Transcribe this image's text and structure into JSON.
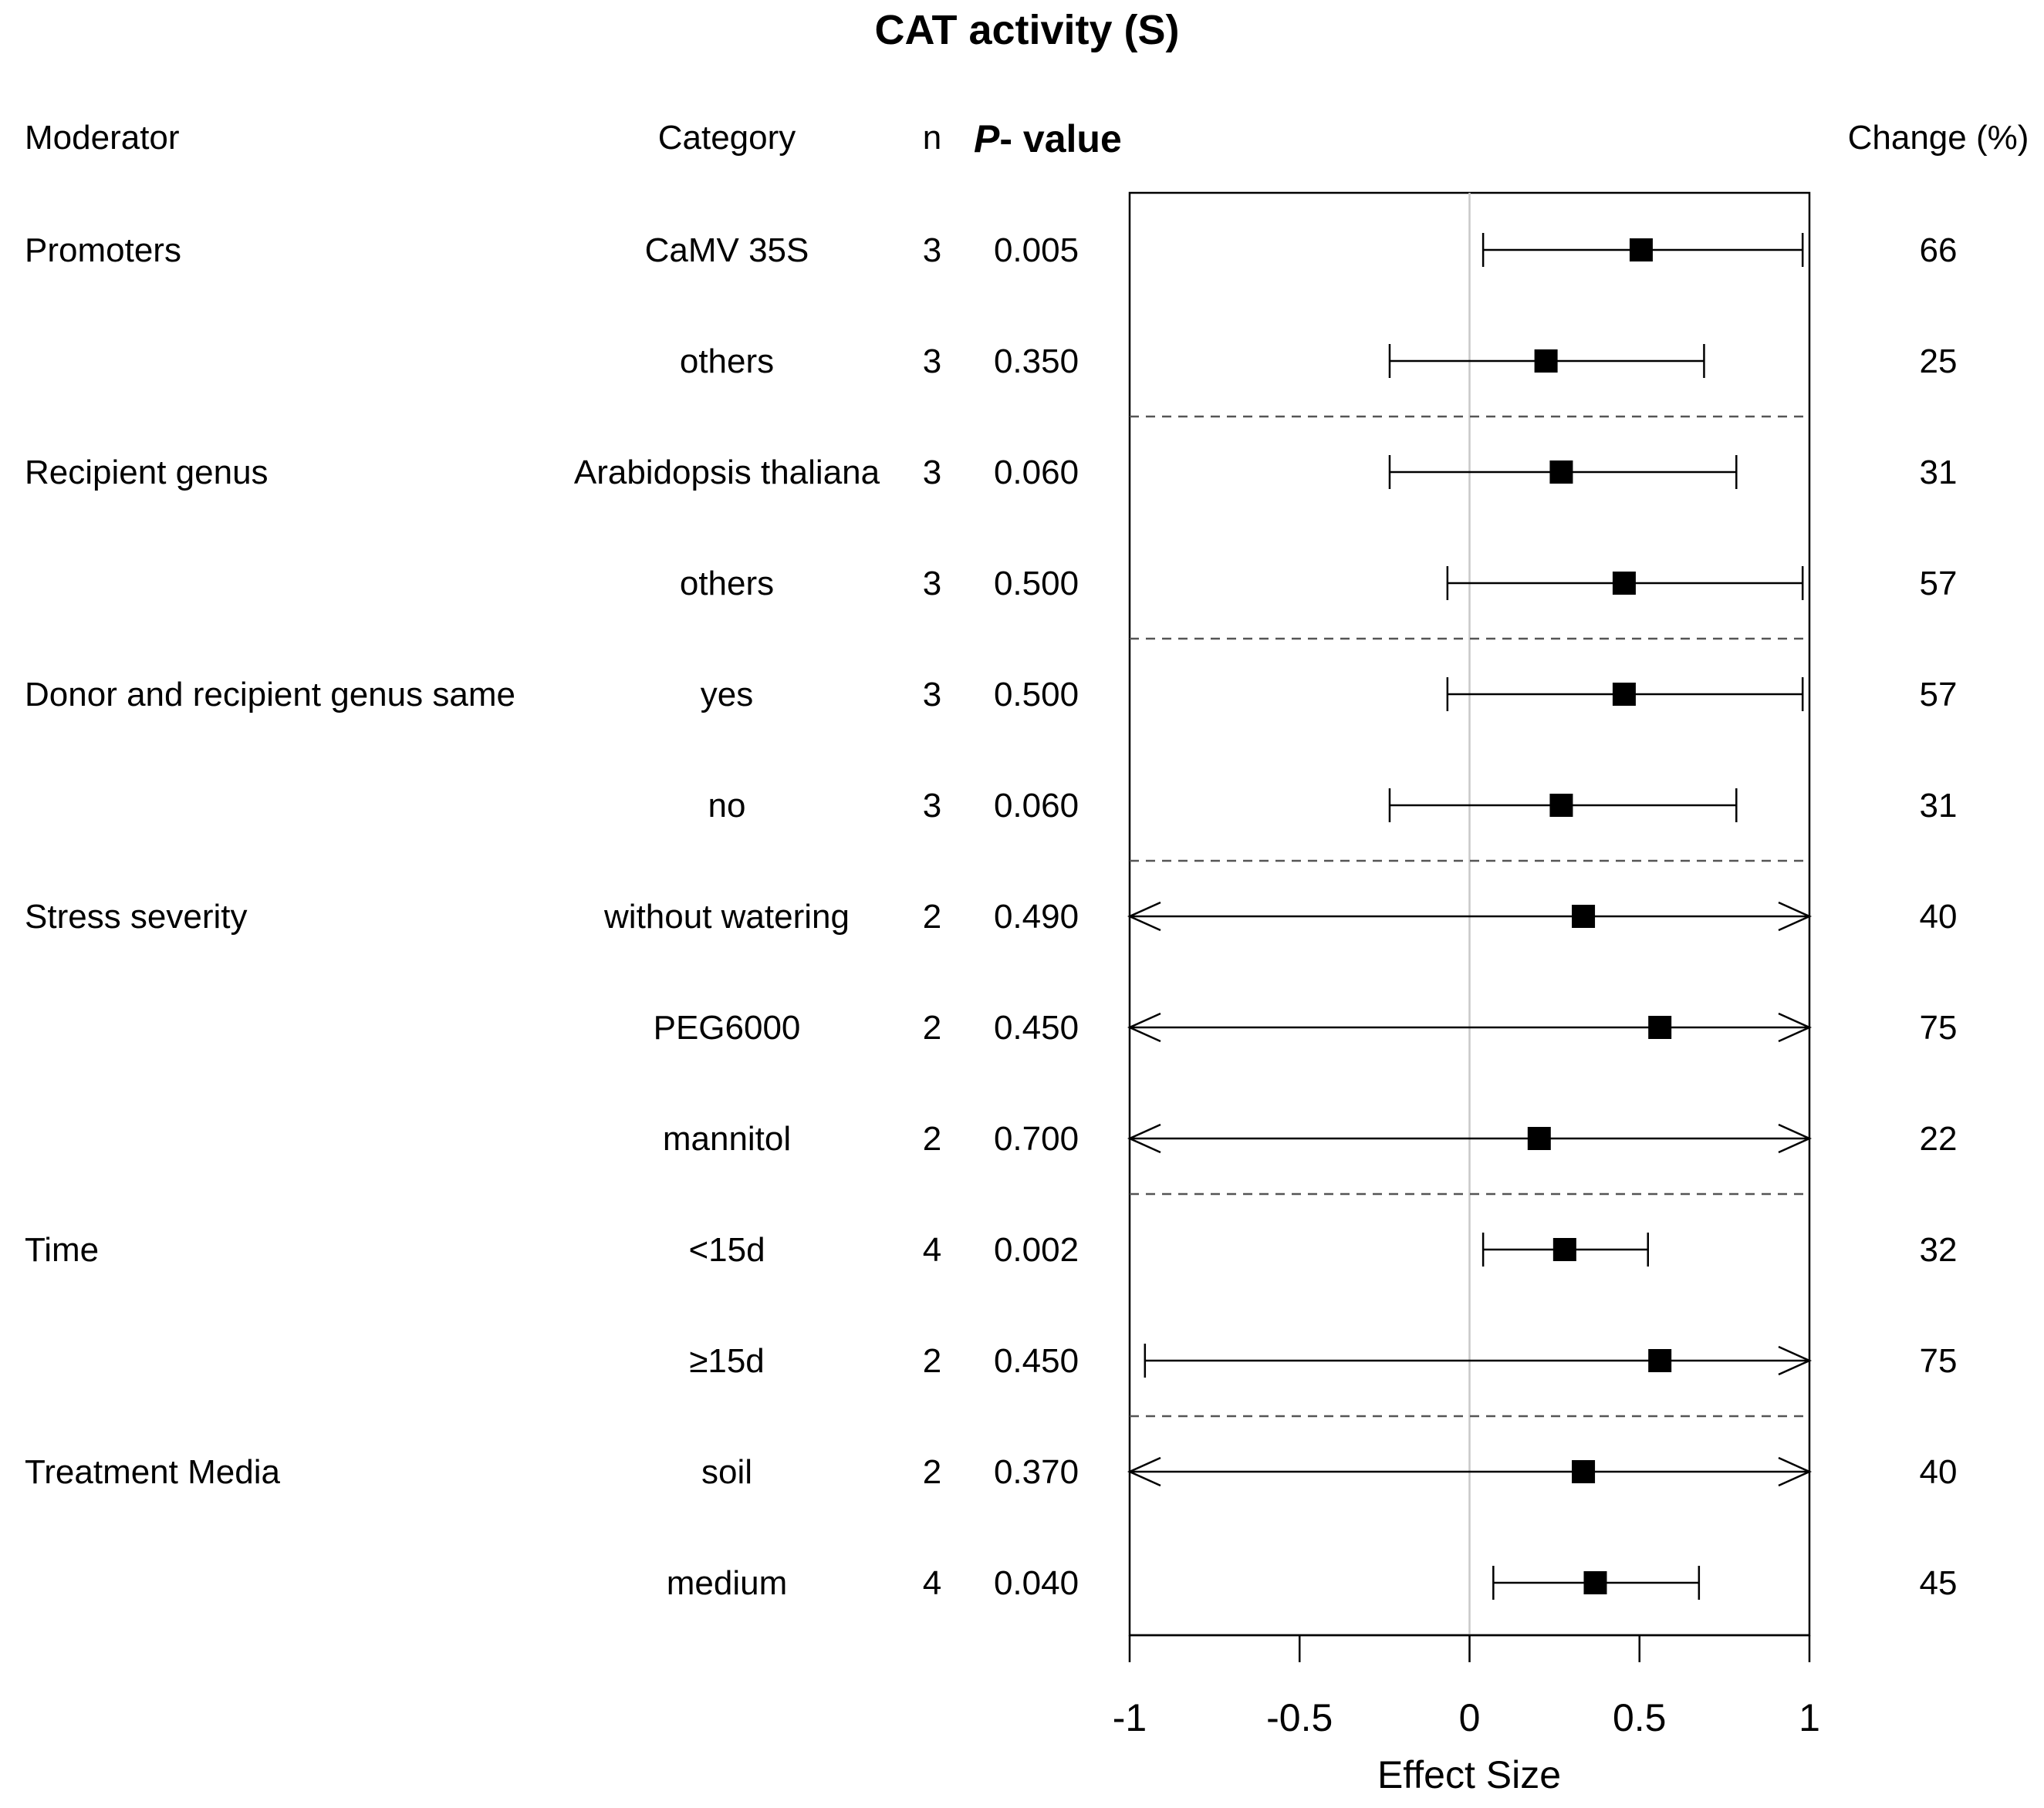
{
  "chart_data": {
    "type": "forest",
    "title": "CAT activity (S)",
    "xlabel": "Effect Size",
    "xlim": [
      -1,
      1
    ],
    "xticks": [
      -1,
      -0.5,
      0,
      0.5,
      1
    ],
    "xtick_labels": [
      "-1",
      "-0.5",
      "0",
      "0.5",
      "1"
    ],
    "columns": {
      "moderator": "Moderator",
      "category": "Category",
      "n": "n",
      "p_italic": "P",
      "p_rest": "- value",
      "change": "Change (%)"
    },
    "rows": [
      {
        "moderator": "Promoters",
        "category": "CaMV 35S",
        "n": "3",
        "p": "0.005",
        "es": 0.505,
        "lo": 0.04,
        "hi": 0.98,
        "lo_arrow": false,
        "hi_arrow": false,
        "change": "66"
      },
      {
        "moderator": "",
        "category": "others",
        "n": "3",
        "p": "0.350",
        "es": 0.225,
        "lo": -0.235,
        "hi": 0.69,
        "lo_arrow": false,
        "hi_arrow": false,
        "change": "25"
      },
      {
        "moderator": "Recipient genus",
        "category": "Arabidopsis thaliana",
        "n": "3",
        "p": "0.060",
        "es": 0.27,
        "lo": -0.235,
        "hi": 0.785,
        "lo_arrow": false,
        "hi_arrow": false,
        "change": "31"
      },
      {
        "moderator": "",
        "category": "others",
        "n": "3",
        "p": "0.500",
        "es": 0.455,
        "lo": -0.065,
        "hi": 0.98,
        "lo_arrow": false,
        "hi_arrow": false,
        "change": "57"
      },
      {
        "moderator": "Donor and recipient genus same",
        "category": "yes",
        "n": "3",
        "p": "0.500",
        "es": 0.455,
        "lo": -0.065,
        "hi": 0.98,
        "lo_arrow": false,
        "hi_arrow": false,
        "change": "57"
      },
      {
        "moderator": "",
        "category": "no",
        "n": "3",
        "p": "0.060",
        "es": 0.27,
        "lo": -0.235,
        "hi": 0.785,
        "lo_arrow": false,
        "hi_arrow": false,
        "change": "31"
      },
      {
        "moderator": "Stress severity",
        "category": "without watering",
        "n": "2",
        "p": "0.490",
        "es": 0.335,
        "lo": -1,
        "hi": 1,
        "lo_arrow": true,
        "hi_arrow": true,
        "change": "40"
      },
      {
        "moderator": "",
        "category": "PEG6000",
        "n": "2",
        "p": "0.450",
        "es": 0.56,
        "lo": -1,
        "hi": 1,
        "lo_arrow": true,
        "hi_arrow": true,
        "change": "75"
      },
      {
        "moderator": "",
        "category": "mannitol",
        "n": "2",
        "p": "0.700",
        "es": 0.205,
        "lo": -1,
        "hi": 1,
        "lo_arrow": true,
        "hi_arrow": true,
        "change": "22"
      },
      {
        "moderator": "Time",
        "category": "<15d",
        "n": "4",
        "p": "0.002",
        "es": 0.28,
        "lo": 0.04,
        "hi": 0.525,
        "lo_arrow": false,
        "hi_arrow": false,
        "change": "32"
      },
      {
        "moderator": "",
        "category": "≥15d",
        "n": "2",
        "p": "0.450",
        "es": 0.56,
        "lo": -0.955,
        "hi": 1,
        "lo_arrow": false,
        "hi_arrow": true,
        "change": "75"
      },
      {
        "moderator": "Treatment Media",
        "category": "soil",
        "n": "2",
        "p": "0.370",
        "es": 0.335,
        "lo": -1,
        "hi": 1,
        "lo_arrow": true,
        "hi_arrow": true,
        "change": "40"
      },
      {
        "moderator": "",
        "category": "medium",
        "n": "4",
        "p": "0.040",
        "es": 0.37,
        "lo": 0.07,
        "hi": 0.675,
        "lo_arrow": false,
        "hi_arrow": false,
        "change": "45"
      }
    ],
    "group_separators_after_row": [
      1,
      3,
      5,
      8,
      10
    ]
  }
}
